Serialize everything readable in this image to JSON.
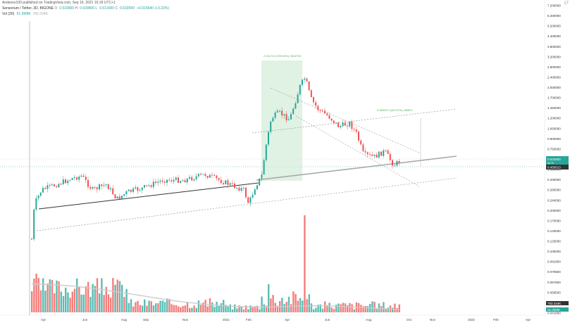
{
  "header": {
    "publisher": "Andesso100 published on TradingView.com, Sep 16, 2021 16:18 UTC+1",
    "symbol": "Sensorium / Tether, 3D, BIGONE",
    "ohlc": [
      {
        "label": "O",
        "value": "0.516860"
      },
      {
        "label": "H",
        "value": "0.539800"
      },
      {
        "label": "L",
        "value": "0.513060"
      },
      {
        "label": "C",
        "value": "0.533500"
      }
    ],
    "change": "+0.016640 (+3.22%)",
    "volume": {
      "label": "Vol (20)",
      "value": "61.099M",
      "ma": "783.334K"
    }
  },
  "price_axis": {
    "ticks": [
      "7.200000",
      "6.200000",
      "5.200000",
      "4.400000",
      "3.800000",
      "3.200000",
      "2.800000",
      "2.400000",
      "2.000000",
      "1.700000",
      "1.450000",
      "1.200000",
      "1.050000",
      "0.900000",
      "0.750000",
      "0.650000",
      "0.390000",
      "0.330000",
      "0.280000",
      "0.240000",
      "0.200000",
      "0.170000",
      "0.145000",
      "0.125000",
      "0.105000",
      "0.091800",
      "0.079800",
      "0.067800",
      "0.058500",
      "0.049500",
      "0.041800"
    ],
    "current_price": "0.533500",
    "current_sub": "5d 7h",
    "line_price": "0.450013",
    "vol_badge": "783.334K",
    "vol_badge2": "61.099M"
  },
  "time_axis": {
    "labels": [
      "Apr",
      "Jun",
      "Aug",
      "Sep",
      "Nov",
      "2021",
      "Feb",
      "Apr",
      "Jun",
      "Aug",
      "Oct",
      "Nov",
      "2022",
      "Feb",
      "Apr"
    ]
  },
  "annotations": {
    "long_box": "2.151743 (790.09%) 2815753",
    "range": "0.980037 (180.37%) 280607"
  },
  "colors": {
    "up": "#26a69a",
    "down": "#ef5350",
    "box": "#d4edda",
    "box_text": "#4caf50"
  },
  "logo": "17 "
}
